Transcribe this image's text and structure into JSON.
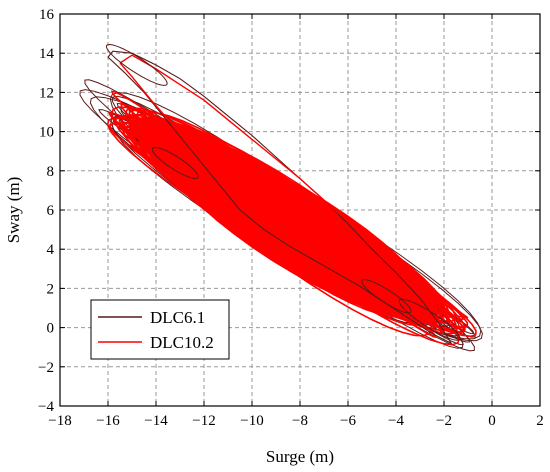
{
  "chart_data": {
    "type": "line",
    "title": "",
    "xlabel": "Surge (m)",
    "ylabel": "Sway (m)",
    "xlim": [
      -18,
      2
    ],
    "ylim": [
      -4,
      16
    ],
    "xticks": [
      -18,
      -16,
      -14,
      -12,
      -10,
      -8,
      -6,
      -4,
      -2,
      0,
      2
    ],
    "yticks": [
      -4,
      -2,
      0,
      2,
      4,
      6,
      8,
      10,
      12,
      14,
      16
    ],
    "xtick_labels": [
      "−18",
      "−16",
      "−14",
      "−12",
      "−10",
      "−8",
      "−6",
      "−4",
      "−2",
      "0",
      "2"
    ],
    "ytick_labels": [
      "−4",
      "−2",
      "0",
      "2",
      "4",
      "6",
      "8",
      "10",
      "12",
      "14",
      "16"
    ],
    "grid": true,
    "legend_position": "bottom-left",
    "series": [
      {
        "name": "DLC6.1",
        "color": "#5a1a1a",
        "x": [
          -16.0,
          -15.3,
          -14.5,
          -13.5,
          -12.5,
          -11.5,
          -10.5,
          -9.5,
          -8.5,
          -7.5,
          -6.5,
          -5.5,
          -4.5,
          -3.5,
          -2.5,
          -1.7,
          -2.2,
          -3.0,
          -4.0,
          -5.0,
          -6.0,
          -7.0,
          -8.0,
          -9.0,
          -10.0,
          -11.0,
          -12.0,
          -13.0,
          -14.0,
          -15.0,
          -15.8,
          -16.0
        ],
        "y": [
          13.8,
          13.0,
          12.0,
          10.5,
          9.0,
          7.5,
          6.0,
          5.0,
          4.2,
          3.5,
          2.8,
          2.1,
          1.3,
          0.5,
          -0.3,
          -0.8,
          0.2,
          1.5,
          2.8,
          4.0,
          5.3,
          6.5,
          7.6,
          8.7,
          9.8,
          10.8,
          11.8,
          12.7,
          13.4,
          14.0,
          14.1,
          13.8
        ]
      },
      {
        "name": "DLC10.2",
        "color": "#ff0000",
        "x": [
          -15.5,
          -15.0,
          -14.2,
          -13.2,
          -12.2,
          -11.2,
          -10.2,
          -9.2,
          -8.2,
          -7.2,
          -6.2,
          -5.2,
          -4.2,
          -3.2,
          -2.4,
          -1.0,
          -2.0,
          -3.0,
          -4.0,
          -5.0,
          -6.0,
          -7.0,
          -8.0,
          -9.0,
          -10.0,
          -11.0,
          -12.0,
          -13.0,
          -14.0,
          -15.0,
          -15.5
        ],
        "y": [
          13.5,
          12.8,
          11.6,
          10.2,
          8.8,
          7.4,
          6.2,
          5.2,
          4.4,
          3.7,
          3.0,
          2.3,
          1.6,
          1.0,
          0.8,
          0.5,
          1.4,
          2.4,
          3.3,
          4.3,
          5.4,
          6.5,
          7.6,
          8.6,
          9.6,
          10.6,
          11.6,
          12.4,
          13.2,
          13.9,
          13.5
        ]
      }
    ]
  }
}
